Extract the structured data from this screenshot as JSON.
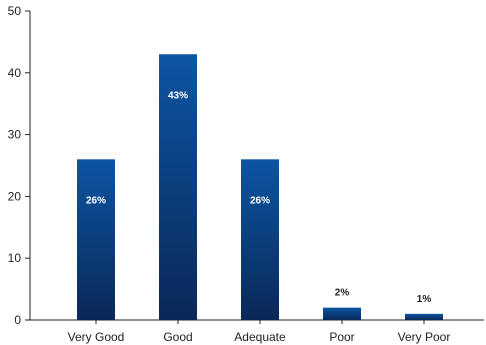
{
  "chart_data": {
    "type": "bar",
    "categories": [
      "Very Good",
      "Good",
      "Adequate",
      "Poor",
      "Very Poor"
    ],
    "values": [
      26,
      43,
      26,
      2,
      1
    ],
    "data_labels": [
      "26%",
      "43%",
      "26%",
      "2%",
      "1%"
    ],
    "ylim": [
      0,
      50
    ],
    "yticks": [
      0,
      10,
      20,
      30,
      40,
      50
    ],
    "title": "",
    "xlabel": "",
    "ylabel": "",
    "grid": false,
    "legend": "none",
    "colors": {
      "bar_top": "#0d55a3",
      "bar_bottom": "#0a2858",
      "axis": "#222222"
    }
  }
}
